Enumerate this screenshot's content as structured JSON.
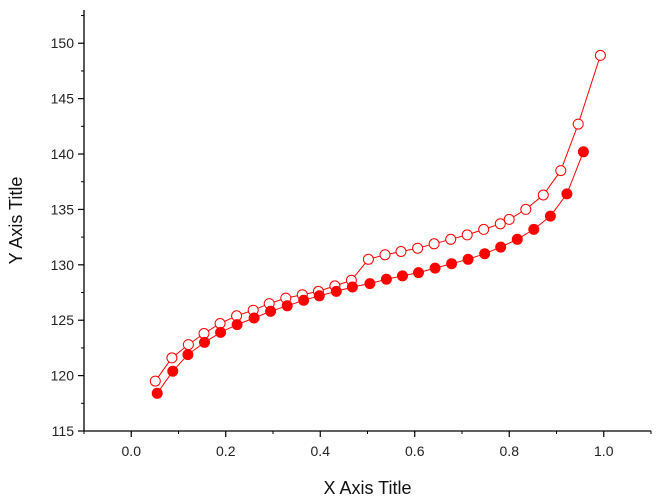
{
  "chart_data": {
    "type": "scatter",
    "xlabel": "X Axis Title",
    "ylabel": "Y Axis Title",
    "xlim": [
      -0.1,
      1.1
    ],
    "ylim": [
      115,
      153
    ],
    "x_ticks": [
      "0.0",
      "0.2",
      "0.4",
      "0.6",
      "0.8",
      "1.0"
    ],
    "x_tick_values": [
      0.0,
      0.2,
      0.4,
      0.6,
      0.8,
      1.0
    ],
    "y_ticks": [
      "115",
      "120",
      "125",
      "130",
      "135",
      "140",
      "145",
      "150"
    ],
    "y_tick_values": [
      115,
      120,
      125,
      130,
      135,
      140,
      145,
      150
    ],
    "grid": false,
    "legend": "none",
    "series_color": "#ff0000",
    "series": [
      {
        "marker": "open-circle",
        "x": [
          0.051,
          0.086,
          0.121,
          0.154,
          0.188,
          0.223,
          0.258,
          0.292,
          0.327,
          0.362,
          0.396,
          0.431,
          0.466,
          0.502,
          0.537,
          0.571,
          0.606,
          0.641,
          0.676,
          0.711,
          0.746,
          0.781,
          0.8,
          0.835,
          0.872,
          0.909,
          0.946,
          0.993
        ],
        "y": [
          119.5,
          121.6,
          122.8,
          123.8,
          124.7,
          125.4,
          125.9,
          126.5,
          127.0,
          127.3,
          127.6,
          128.1,
          128.6,
          130.5,
          130.9,
          131.2,
          131.5,
          131.9,
          132.3,
          132.7,
          133.2,
          133.7,
          134.1,
          135.0,
          136.3,
          138.5,
          142.7,
          148.9
        ]
      },
      {
        "marker": "filled-circle",
        "x": [
          0.055,
          0.088,
          0.12,
          0.155,
          0.189,
          0.224,
          0.26,
          0.295,
          0.33,
          0.365,
          0.398,
          0.434,
          0.468,
          0.505,
          0.54,
          0.574,
          0.608,
          0.643,
          0.678,
          0.713,
          0.748,
          0.782,
          0.817,
          0.852,
          0.887,
          0.922,
          0.957
        ],
        "y": [
          118.4,
          120.4,
          121.9,
          123.0,
          123.9,
          124.6,
          125.2,
          125.8,
          126.3,
          126.8,
          127.2,
          127.6,
          128.0,
          128.3,
          128.7,
          129.0,
          129.3,
          129.7,
          130.1,
          130.5,
          131.0,
          131.6,
          132.3,
          133.2,
          134.4,
          136.4,
          140.2
        ]
      }
    ]
  }
}
